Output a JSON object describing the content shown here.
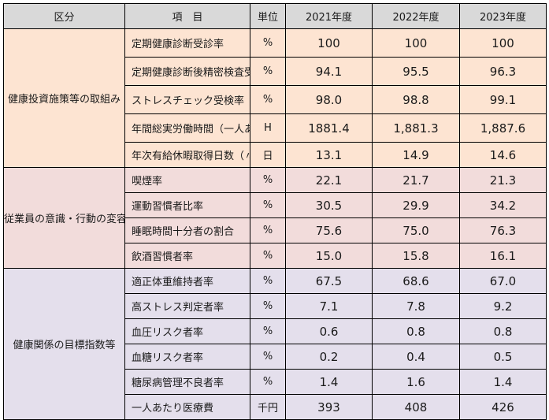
{
  "headers": [
    "区分",
    "項　目",
    "単位",
    "2021年度",
    "2022年度",
    "2023年度"
  ],
  "groups": [
    {
      "category": "健康投資施策等の取組み",
      "colors": {
        "fill": "#fde4d2"
      },
      "rows": [
        {
          "item": "定期健康診断受診率",
          "unit": "%",
          "values": [
            "100",
            "100",
            "100"
          ]
        },
        {
          "item": "定期健康診断後精密検査受診率",
          "unit": "%",
          "values": [
            "94.1",
            "95.5",
            "96.3"
          ]
        },
        {
          "item": "ストレスチェック受検率",
          "unit": "%",
          "values": [
            "98.0",
            "98.8",
            "99.1"
          ]
        },
        {
          "item": "年間総実労働時間（一人あたり平均）",
          "unit": "H",
          "values": [
            "1881.4",
            "1,881.3",
            "1,887.6"
          ]
        },
        {
          "item": "年次有給休暇取得日数（〃）",
          "unit": "日",
          "values": [
            "13.1",
            "14.9",
            "14.6"
          ]
        }
      ]
    },
    {
      "category": "従業員の意識・行動の変容",
      "colors": {
        "fill": "#f2dcdb"
      },
      "rows": [
        {
          "item": "喫煙率",
          "unit": "%",
          "values": [
            "22.1",
            "21.7",
            "21.3"
          ]
        },
        {
          "item": "運動習慣者比率",
          "unit": "%",
          "values": [
            "30.5",
            "29.9",
            "34.2"
          ]
        },
        {
          "item": "睡眠時間十分者の割合",
          "unit": "%",
          "values": [
            "75.6",
            "75.0",
            "76.3"
          ]
        },
        {
          "item": "飲酒習慣者率",
          "unit": "%",
          "values": [
            "15.0",
            "15.8",
            "16.1"
          ]
        }
      ]
    },
    {
      "category": "健康関係の目標指数等",
      "colors": {
        "fill": "#e4dfec"
      },
      "rows": [
        {
          "item": "適正体重維持者率",
          "unit": "%",
          "values": [
            "67.5",
            "68.6",
            "67.0"
          ]
        },
        {
          "item": "高ストレス判定者率",
          "unit": "%",
          "values": [
            "7.1",
            "7.8",
            "9.2"
          ]
        },
        {
          "item": "血圧リスク者率",
          "unit": "%",
          "values": [
            "0.6",
            "0.8",
            "0.8"
          ]
        },
        {
          "item": "血糖リスク者率",
          "unit": "%",
          "values": [
            "0.2",
            "0.4",
            "0.5"
          ]
        },
        {
          "item": "糖尿病管理不良者率",
          "unit": "%",
          "values": [
            "1.4",
            "1.6",
            "1.4"
          ]
        },
        {
          "item": "一人あたり医療費",
          "unit": "千円",
          "values": [
            "393",
            "408",
            "426"
          ]
        }
      ]
    }
  ],
  "colors": {
    "header_fill": "#d9d9d9",
    "border": "#000000"
  }
}
